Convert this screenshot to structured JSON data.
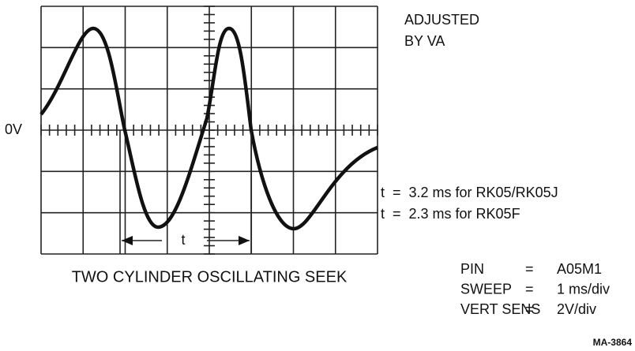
{
  "title_lines": [
    "ADJUSTED",
    "BY VA"
  ],
  "zero_label": "0V",
  "interval_label": "t",
  "timing_notes": [
    "t  =  3.2 ms for RK05/RK05J",
    "t  =  2.3 ms for RK05F"
  ],
  "caption": "TWO CYLINDER OSCILLATING SEEK",
  "settings": [
    [
      "PIN",
      "=",
      "A05M1"
    ],
    [
      "SWEEP",
      "=",
      "1 ms/div"
    ],
    [
      "VERT SENS",
      "=",
      "2V/div"
    ]
  ],
  "figure_id": "MA-3864"
}
